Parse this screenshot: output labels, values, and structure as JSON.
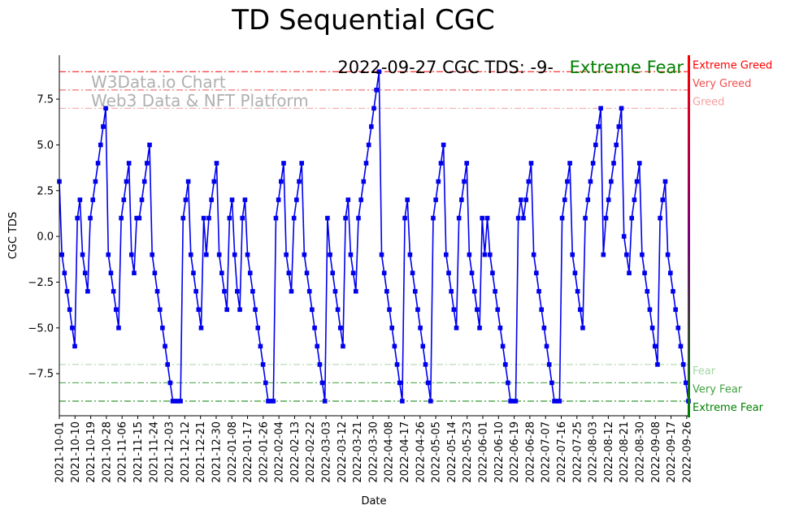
{
  "chart_data": {
    "type": "line",
    "title": "TD Sequential CGC",
    "xlabel": "Date",
    "ylabel": "CGC TDS",
    "ylim": [
      -9.8,
      9.9
    ],
    "yticks": [
      -7.5,
      -5.0,
      -2.5,
      0.0,
      2.5,
      5.0,
      7.5
    ],
    "ytick_labels": [
      "−7.5",
      "−5.0",
      "−2.5",
      "0.0",
      "2.5",
      "5.0",
      "7.5"
    ],
    "xticks": [
      "2021-10-01",
      "2021-10-10",
      "2021-10-19",
      "2021-10-28",
      "2021-11-06",
      "2021-11-15",
      "2021-11-24",
      "2021-12-03",
      "2021-12-12",
      "2021-12-21",
      "2021-12-30",
      "2022-01-08",
      "2022-01-17",
      "2022-01-26",
      "2022-02-04",
      "2022-02-13",
      "2022-02-22",
      "2022-03-03",
      "2022-03-12",
      "2022-03-21",
      "2022-03-30",
      "2022-04-08",
      "2022-04-17",
      "2022-04-26",
      "2022-05-05",
      "2022-05-14",
      "2022-05-23",
      "2022-06-01",
      "2022-06-10",
      "2022-06-19",
      "2022-06-28",
      "2022-07-07",
      "2022-07-16",
      "2022-07-25",
      "2022-08-03",
      "2022-08-12",
      "2022-08-21",
      "2022-08-30",
      "2022-09-08",
      "2022-09-17",
      "2022-09-26"
    ],
    "x_start": "2021-10-01",
    "x_days_range": [
      0,
      361
    ],
    "series": [
      {
        "name": "CGC TDS",
        "color": "#0000ee",
        "values": [
          3,
          -1,
          -2,
          -3,
          -4,
          -5,
          -6,
          1,
          2,
          -1,
          -2,
          -3,
          1,
          2,
          3,
          4,
          5,
          6,
          7,
          -1,
          -2,
          -3,
          -4,
          -5,
          1,
          2,
          3,
          4,
          -1,
          -2,
          1,
          1,
          2,
          3,
          4,
          5,
          -1,
          -2,
          -3,
          -4,
          -5,
          -6,
          -7,
          -8,
          -9,
          -9,
          -9,
          -9,
          1,
          2,
          3,
          -1,
          -2,
          -3,
          -4,
          -5,
          1,
          -1,
          1,
          2,
          3,
          4,
          -1,
          -2,
          -3,
          -4,
          1,
          2,
          -1,
          -3,
          -4,
          1,
          2,
          -1,
          -2,
          -3,
          -4,
          -5,
          -6,
          -7,
          -8,
          -9,
          -9,
          -9,
          1,
          2,
          3,
          4,
          -1,
          -2,
          -3,
          1,
          2,
          3,
          4,
          -1,
          -2,
          -3,
          -4,
          -5,
          -6,
          -7,
          -8,
          -9,
          1,
          -1,
          -2,
          -3,
          -4,
          -5,
          -6,
          1,
          2,
          -1,
          -2,
          -3,
          1,
          2,
          3,
          4,
          5,
          6,
          7,
          8,
          9,
          -1,
          -2,
          -3,
          -4,
          -5,
          -6,
          -7,
          -8,
          -9,
          1,
          2,
          -1,
          -2,
          -3,
          -4,
          -5,
          -6,
          -7,
          -8,
          -9,
          1,
          2,
          3,
          4,
          5,
          -1,
          -2,
          -3,
          -4,
          -5,
          1,
          2,
          3,
          4,
          -1,
          -2,
          -3,
          -4,
          -5,
          1,
          -1,
          1,
          -1,
          -2,
          -3,
          -4,
          -5,
          -6,
          -7,
          -8,
          -9,
          -9,
          -9,
          1,
          2,
          1,
          2,
          3,
          4,
          -1,
          -2,
          -3,
          -4,
          -5,
          -6,
          -7,
          -8,
          -9,
          -9,
          -9,
          1,
          2,
          3,
          4,
          -1,
          -2,
          -3,
          -4,
          -5,
          1,
          2,
          3,
          4,
          5,
          6,
          7,
          -1,
          1,
          2,
          3,
          4,
          5,
          6,
          7,
          0,
          -1,
          -2,
          1,
          2,
          3,
          4,
          -1,
          -2,
          -3,
          -4,
          -5,
          -6,
          -7,
          1,
          2,
          3,
          -1,
          -2,
          -3,
          -4,
          -5,
          -6,
          -7,
          -8,
          -9
        ]
      }
    ],
    "reference_lines": [
      {
        "label": "Extreme Greed",
        "value": 9,
        "color": "#ff0000"
      },
      {
        "label": "Very Greed",
        "value": 8,
        "color": "#f05050"
      },
      {
        "label": "Greed",
        "value": 7,
        "color": "#f5a0a0"
      },
      {
        "label": "Fear",
        "value": -7,
        "color": "#a5d5a5"
      },
      {
        "label": "Very Fear",
        "value": -8,
        "color": "#40a040"
      },
      {
        "label": "Extreme Fear",
        "value": -9,
        "color": "#008000"
      }
    ],
    "annotations": {
      "status_text": "2022-09-27 CGC TDS: -9-",
      "status_label": "Extreme Fear",
      "status_color": "#008000",
      "watermark_line1": "W3Data.io Chart",
      "watermark_line2": "Web3 Data & NFT Platform"
    }
  }
}
